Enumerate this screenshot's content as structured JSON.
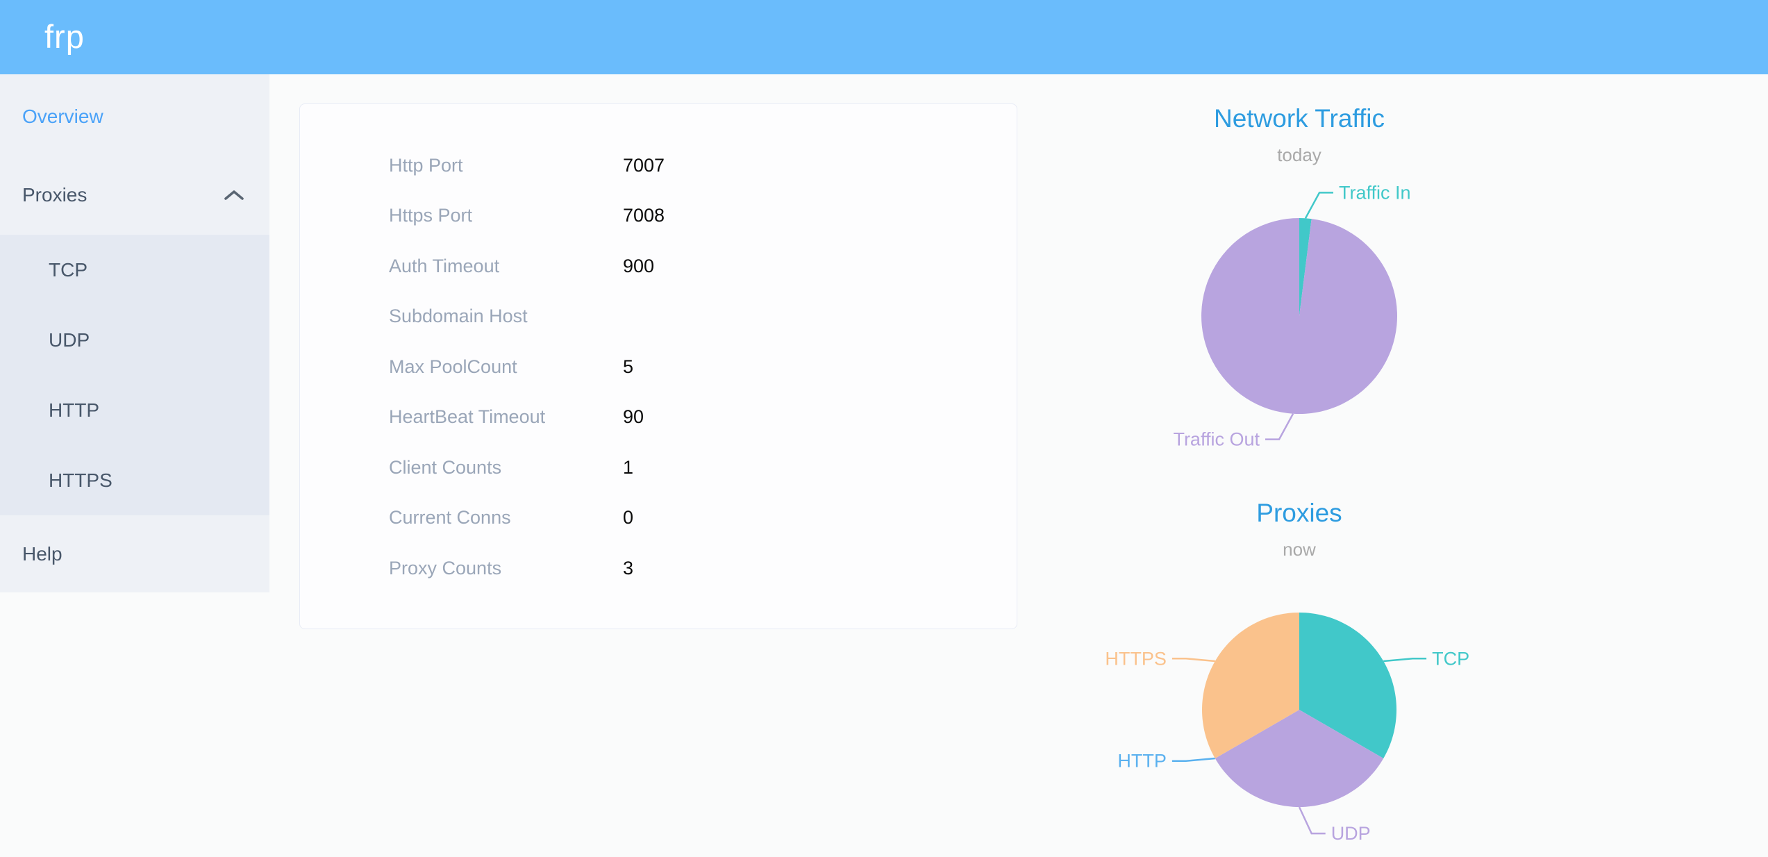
{
  "theme": {
    "header_color": "#6abcfc",
    "sidebar_bg": "#eef1f6",
    "submenu_bg": "#e4e9f2",
    "active_menu_color": "#4aa2f8",
    "menu_text_color": "#48576a",
    "chart_title_color": "#2d9ce0",
    "card_label_color": "#9aa6b8"
  },
  "header": {
    "logo": "frp"
  },
  "sidebar": {
    "items": [
      {
        "id": "overview",
        "label": "Overview",
        "active": true
      },
      {
        "id": "proxies",
        "label": "Proxies",
        "expanded": true,
        "icon": "chevron-up-icon",
        "children": [
          "TCP",
          "UDP",
          "HTTP",
          "HTTPS"
        ]
      },
      {
        "id": "help",
        "label": "Help"
      }
    ]
  },
  "server_info": {
    "rows": [
      {
        "label": "Http Port",
        "value": "7007"
      },
      {
        "label": "Https Port",
        "value": "7008"
      },
      {
        "label": "Auth Timeout",
        "value": "900"
      },
      {
        "label": "Subdomain Host",
        "value": ""
      },
      {
        "label": "Max PoolCount",
        "value": "5"
      },
      {
        "label": "HeartBeat Timeout",
        "value": "90"
      },
      {
        "label": "Client Counts",
        "value": "1"
      },
      {
        "label": "Current Conns",
        "value": "0"
      },
      {
        "label": "Proxy Counts",
        "value": "3"
      }
    ]
  },
  "chart_data": [
    {
      "type": "pie",
      "title": "Network Traffic",
      "subtitle": "today",
      "labels": [
        "Traffic In",
        "Traffic Out"
      ],
      "values": [
        2,
        98
      ],
      "values_unit": "percent-of-pie (estimated from slice angles)",
      "colors": [
        "#41c8c9",
        "#b8a4df"
      ],
      "legend_position": "none",
      "label_style": "outside-with-leader-lines"
    },
    {
      "type": "pie",
      "title": "Proxies",
      "subtitle": "now",
      "labels": [
        "TCP",
        "UDP",
        "HTTP",
        "HTTPS"
      ],
      "values": [
        1,
        1,
        0,
        1
      ],
      "values_unit": "proxy count per type (three equal 120° slices, HTTP empty)",
      "colors": [
        "#41c8c9",
        "#b8a4df",
        "#5ab1ef",
        "#fac28c"
      ],
      "legend_position": "none",
      "label_style": "outside-with-leader-lines"
    }
  ]
}
